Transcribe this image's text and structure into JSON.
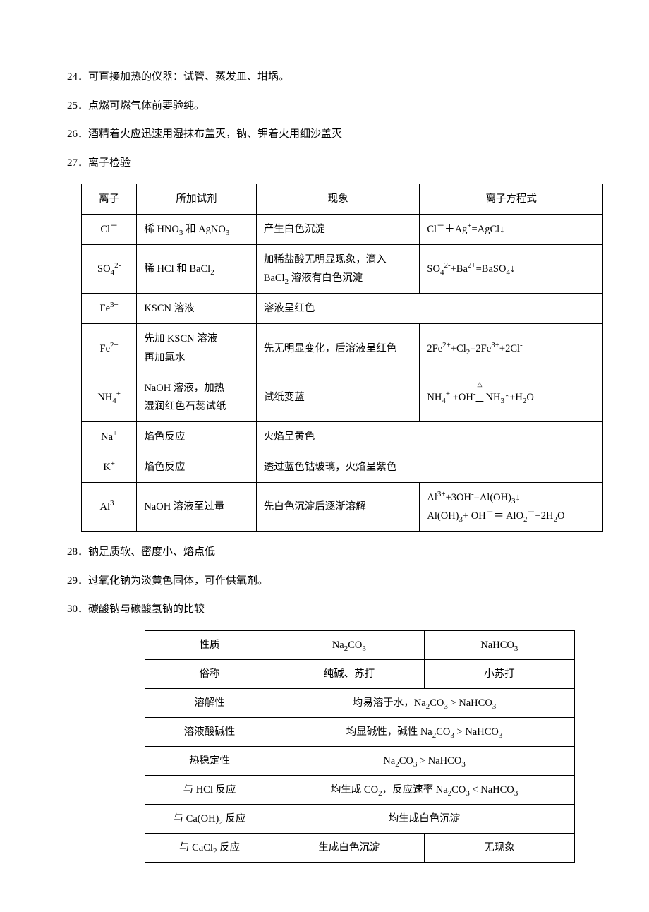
{
  "items": {
    "i24": "24．可直接加热的仪器：试管、蒸发皿、坩埚。",
    "i25": "25．点燃可燃气体前要验纯。",
    "i26": "26．酒精着火应迅速用湿抹布盖灭，钠、钾着火用细沙盖灭",
    "i27": "27．离子检验",
    "i28": "28．钠是质软、密度小、熔点低",
    "i29": "29．过氧化钠为淡黄色固体，可作供氧剂。",
    "i30": "30．碳酸钠与碳酸氢钠的比较"
  },
  "t1": {
    "header": {
      "c1": "离子",
      "c2": "所加试剂",
      "c3": "现象",
      "c4": "离子方程式"
    },
    "rows": [
      {
        "ion": "Cl⁻",
        "reagent": "稀 HNO₃ 和 AgNO₃",
        "phen": "产生白色沉淀",
        "eq": "Cl⁻＋Ag⁺=AgCl↓"
      },
      {
        "ion": "SO₄²⁻",
        "reagent": "稀 HCl 和 BaCl₂",
        "phen": "加稀盐酸无明显现象，滴入BaCl₂ 溶液有白色沉淀",
        "eq": "SO₄²⁻+Ba²⁺=BaSO₄↓"
      },
      {
        "ion": "Fe³⁺",
        "reagent": "KSCN 溶液",
        "phen": "溶液呈红色",
        "eq": ""
      },
      {
        "ion": "Fe²⁺",
        "reagent": "先加 KSCN 溶液\n再加氯水",
        "phen": "先无明显变化，后溶液呈红色",
        "eq": "2Fe²⁺+Cl₂=2Fe³⁺+2Cl⁻"
      },
      {
        "ion": "NH₄⁺",
        "reagent": "NaOH 溶液，加热\n湿润红色石蕊试纸",
        "phen": "试纸变蓝",
        "eq": "NH₄⁺ +OH⁻ ≜ NH₃↑+H₂O"
      },
      {
        "ion": "Na⁺",
        "reagent": "焰色反应",
        "phen": "火焰呈黄色",
        "eq": ""
      },
      {
        "ion": "K⁺",
        "reagent": "焰色反应",
        "phen": "透过蓝色钴玻璃，火焰呈紫色",
        "eq": ""
      },
      {
        "ion": "Al³⁺",
        "reagent": "NaOH 溶液至过量",
        "phen": "先白色沉淀后逐渐溶解",
        "eq": "Al³⁺+3OH⁻=Al(OH)₃↓\nAl(OH)₃+ OH⁻＝ AlO₂⁻+2H₂O"
      }
    ]
  },
  "t2": {
    "header": {
      "c1": "性质",
      "c2": "Na₂CO₃",
      "c3": "NaHCO₃"
    },
    "rows": [
      {
        "p": "俗称",
        "a": "纯碱、苏打",
        "b": "小苏打",
        "span": false
      },
      {
        "p": "溶解性",
        "merged": "均易溶于水，Na₂CO₃ > NaHCO₃",
        "span": true
      },
      {
        "p": "溶液酸碱性",
        "merged": "均显碱性，碱性 Na₂CO₃ > NaHCO₃",
        "span": true
      },
      {
        "p": "热稳定性",
        "merged": "Na₂CO₃ > NaHCO₃",
        "span": true
      },
      {
        "p": "与 HCl 反应",
        "merged": "均生成 CO₂，反应速率 Na₂CO₃ < NaHCO₃",
        "span": true
      },
      {
        "p": "与 Ca(OH)₂ 反应",
        "merged": "均生成白色沉淀",
        "span": true
      },
      {
        "p": "与 CaCl₂ 反应",
        "a": "生成白色沉淀",
        "b": "无现象",
        "span": false
      }
    ]
  }
}
